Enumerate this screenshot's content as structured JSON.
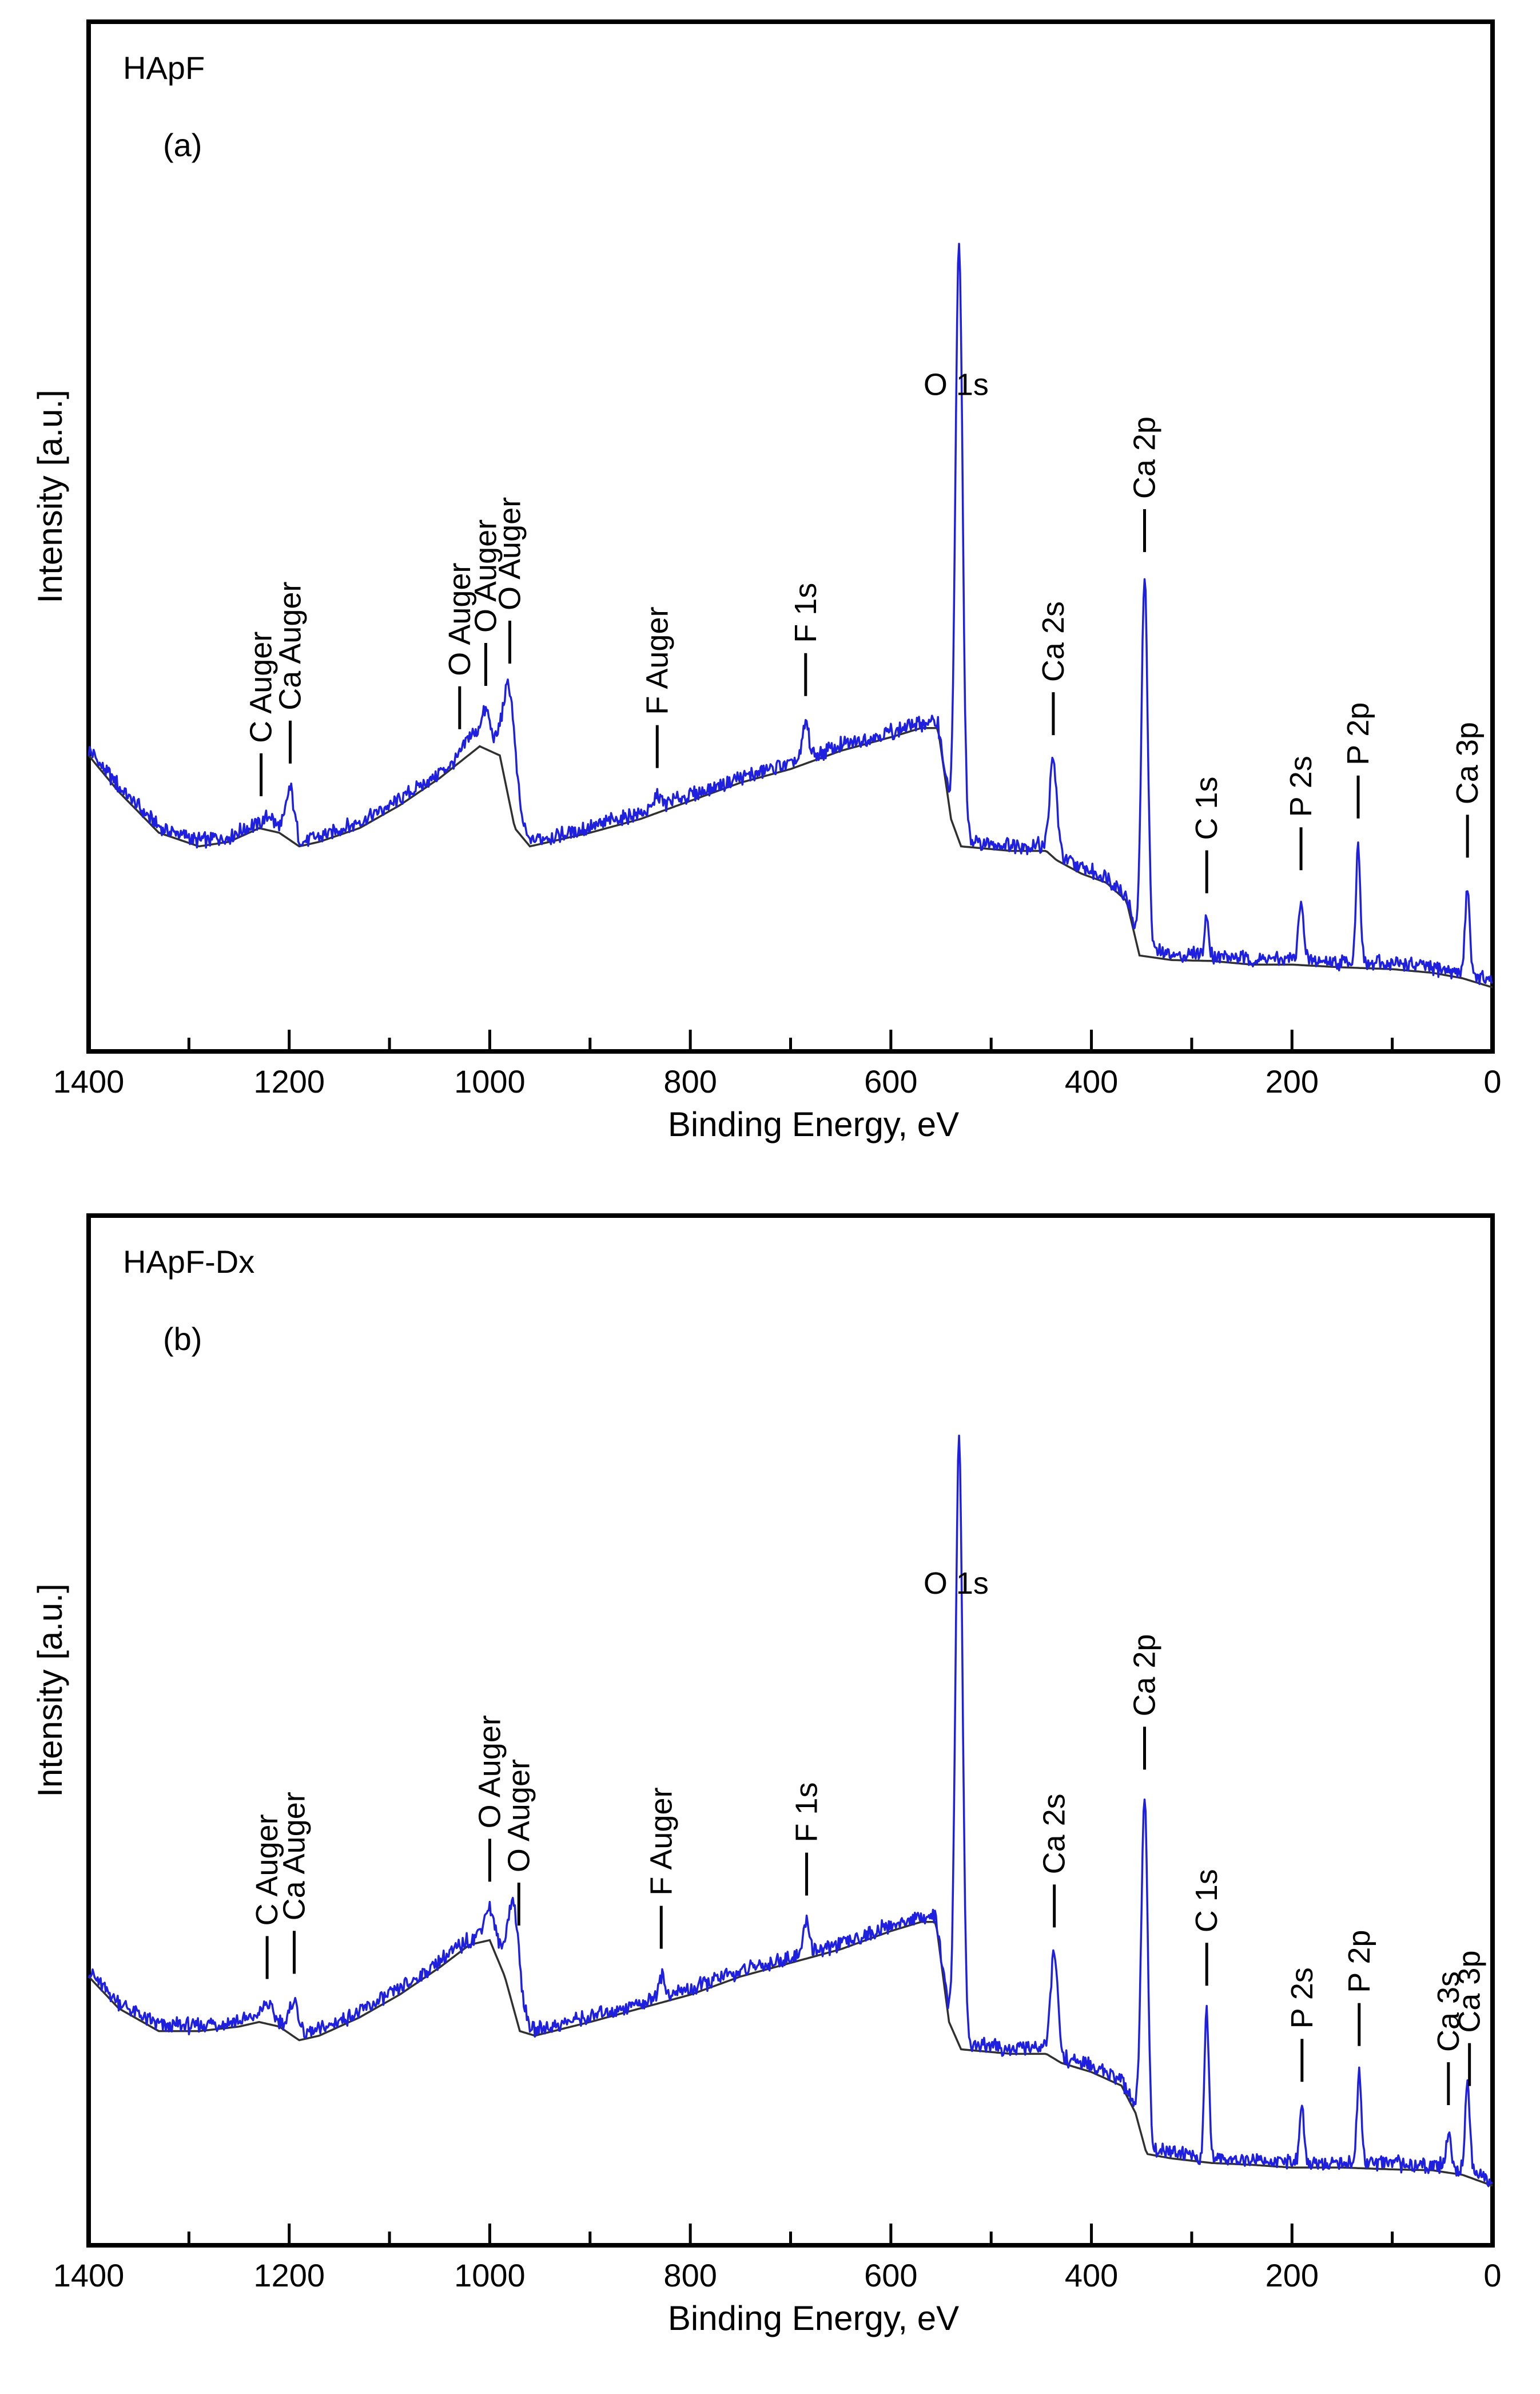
{
  "chart_data": [
    {
      "type": "line",
      "panel_label": "(a)",
      "sample": "HApF",
      "xlabel": "Binding Energy, eV",
      "ylabel": "Intensity [a.u.]",
      "xlim": [
        1400,
        0
      ],
      "x_reversed": true,
      "ylim": [
        0,
        100
      ],
      "grid": false,
      "x_ticks": [
        1400,
        1200,
        1000,
        800,
        600,
        400,
        200,
        0
      ],
      "series": [
        {
          "name": "spectrum",
          "color": "#1f1fe0"
        },
        {
          "name": "background",
          "color": "#303030"
        }
      ],
      "backbone": [
        [
          1400,
          30
        ],
        [
          1370,
          26
        ],
        [
          1330,
          21.5
        ],
        [
          1290,
          20
        ],
        [
          1260,
          20.5
        ],
        [
          1230,
          22
        ],
        [
          1210,
          21.5
        ],
        [
          1190,
          20
        ],
        [
          1170,
          20.5
        ],
        [
          1130,
          22
        ],
        [
          1090,
          24.5
        ],
        [
          1050,
          27.5
        ],
        [
          1010,
          31
        ],
        [
          990,
          30
        ],
        [
          975,
          22
        ],
        [
          960,
          20
        ],
        [
          900,
          21.5
        ],
        [
          850,
          23
        ],
        [
          800,
          25
        ],
        [
          750,
          27
        ],
        [
          700,
          28.5
        ],
        [
          650,
          30.5
        ],
        [
          600,
          32
        ],
        [
          570,
          33
        ],
        [
          553,
          33
        ],
        [
          540,
          23
        ],
        [
          530,
          20
        ],
        [
          480,
          19.5
        ],
        [
          445,
          19.5
        ],
        [
          435,
          18.5
        ],
        [
          410,
          17
        ],
        [
          385,
          16
        ],
        [
          365,
          14
        ],
        [
          352,
          8
        ],
        [
          320,
          7.5
        ],
        [
          280,
          7.4
        ],
        [
          240,
          7
        ],
        [
          200,
          7
        ],
        [
          150,
          6.7
        ],
        [
          100,
          6.5
        ],
        [
          60,
          6.1
        ],
        [
          30,
          5.5
        ],
        [
          0,
          4.5
        ]
      ],
      "peaks": [
        {
          "label": "O 1s",
          "x": 532,
          "height": 65,
          "width": 3.5
        },
        {
          "label": "Ca 2p",
          "x": 347,
          "height": 41,
          "width": 3.2
        },
        {
          "label": "Ca 2s",
          "x": 438,
          "height": 10,
          "width": 3.5
        },
        {
          "label": "O Auger",
          "x": 980,
          "height": 12,
          "width": 6
        },
        {
          "label": "O Auger",
          "x": 1004,
          "height": 3.5,
          "width": 5
        },
        {
          "label": "O Auger",
          "x": 1020,
          "height": 1.5,
          "width": 5
        },
        {
          "label": "F 1s",
          "x": 685,
          "height": 4,
          "width": 3
        },
        {
          "label": "F Auger",
          "x": 833,
          "height": 1.5,
          "width": 3
        },
        {
          "label": "Ca Auger",
          "x": 1199,
          "height": 5,
          "width": 4
        },
        {
          "label": "C Auger",
          "x": 1220,
          "height": 1,
          "width": 4
        },
        {
          "label": "C 1s",
          "x": 285,
          "height": 4,
          "width": 2.2
        },
        {
          "label": "P 2s",
          "x": 191,
          "height": 7,
          "width": 2.2
        },
        {
          "label": "P 2p",
          "x": 134,
          "height": 13,
          "width": 2.2
        },
        {
          "label": "Ca 3p",
          "x": 25,
          "height": 10,
          "width": 2.2
        }
      ],
      "annotations": [
        {
          "text": "O 1s",
          "x": 535,
          "orientation": "horizontal",
          "leader": false
        },
        {
          "text": "Ca 2p",
          "x": 347,
          "orientation": "vertical",
          "leader": true
        },
        {
          "text": "Ca 2s",
          "x": 438,
          "orientation": "vertical",
          "leader": true
        },
        {
          "text": "F 1s",
          "x": 685,
          "orientation": "vertical",
          "leader": true
        },
        {
          "text": "F Auger",
          "x": 833,
          "orientation": "vertical",
          "leader": true
        },
        {
          "text": "O Auger",
          "x": 980,
          "orientation": "vertical",
          "leader": true
        },
        {
          "text": "O Auger",
          "x": 1004,
          "orientation": "vertical",
          "leader": true
        },
        {
          "text": "O Auger",
          "x": 1030,
          "orientation": "vertical",
          "leader": true
        },
        {
          "text": "Ca Auger",
          "x": 1199,
          "orientation": "vertical",
          "leader": true
        },
        {
          "text": "C Auger",
          "x": 1228,
          "orientation": "vertical",
          "leader": true
        },
        {
          "text": "C 1s",
          "x": 285,
          "orientation": "vertical",
          "leader": true
        },
        {
          "text": "P 2s",
          "x": 191,
          "orientation": "vertical",
          "leader": true
        },
        {
          "text": "P 2p",
          "x": 134,
          "orientation": "vertical",
          "leader": true
        },
        {
          "text": "Ca 3p",
          "x": 25,
          "orientation": "vertical",
          "leader": true
        }
      ]
    },
    {
      "type": "line",
      "panel_label": "(b)",
      "sample": "HApF-Dx",
      "xlabel": "Binding Energy, eV",
      "ylabel": "Intensity [a.u.]",
      "xlim": [
        1400,
        0
      ],
      "x_reversed": true,
      "ylim": [
        0,
        100
      ],
      "grid": false,
      "x_ticks": [
        1400,
        1200,
        1000,
        800,
        600,
        400,
        200,
        0
      ],
      "series": [
        {
          "name": "spectrum",
          "color": "#1f1fe0"
        },
        {
          "name": "background",
          "color": "#303030"
        }
      ],
      "backbone": [
        [
          1400,
          27
        ],
        [
          1370,
          23.5
        ],
        [
          1330,
          21
        ],
        [
          1290,
          21
        ],
        [
          1250,
          21.5
        ],
        [
          1230,
          22
        ],
        [
          1210,
          21.5
        ],
        [
          1190,
          20
        ],
        [
          1170,
          20.5
        ],
        [
          1130,
          22.5
        ],
        [
          1090,
          25
        ],
        [
          1050,
          28
        ],
        [
          1020,
          30.5
        ],
        [
          1000,
          31
        ],
        [
          985,
          27
        ],
        [
          970,
          21
        ],
        [
          955,
          20.5
        ],
        [
          900,
          22
        ],
        [
          850,
          23.5
        ],
        [
          800,
          25
        ],
        [
          750,
          27
        ],
        [
          700,
          28.5
        ],
        [
          650,
          30
        ],
        [
          600,
          32
        ],
        [
          570,
          33
        ],
        [
          555,
          33
        ],
        [
          542,
          22
        ],
        [
          530,
          19
        ],
        [
          480,
          18.5
        ],
        [
          445,
          18.5
        ],
        [
          430,
          17.5
        ],
        [
          400,
          16.5
        ],
        [
          370,
          15
        ],
        [
          356,
          12
        ],
        [
          345,
          7.5
        ],
        [
          320,
          7
        ],
        [
          280,
          6.5
        ],
        [
          240,
          6.3
        ],
        [
          200,
          6
        ],
        [
          150,
          6
        ],
        [
          100,
          5.8
        ],
        [
          60,
          5.7
        ],
        [
          30,
          5.2
        ],
        [
          0,
          4
        ]
      ],
      "peaks": [
        {
          "label": "O 1s",
          "x": 532,
          "height": 66,
          "width": 3.5
        },
        {
          "label": "Ca 2p",
          "x": 347,
          "height": 38,
          "width": 3.2
        },
        {
          "label": "Ca 2s",
          "x": 437,
          "height": 11,
          "width": 3.5
        },
        {
          "label": "O Auger",
          "x": 976,
          "height": 11,
          "width": 6
        },
        {
          "label": "O Auger",
          "x": 1000,
          "height": 3,
          "width": 6
        },
        {
          "label": "F 1s",
          "x": 684,
          "height": 3.5,
          "width": 3
        },
        {
          "label": "F Auger",
          "x": 829,
          "height": 2.5,
          "width": 3
        },
        {
          "label": "Ca Auger",
          "x": 1195,
          "height": 3.5,
          "width": 4
        },
        {
          "label": "C Auger",
          "x": 1222,
          "height": 1.5,
          "width": 5
        },
        {
          "label": "C 1s",
          "x": 285,
          "height": 16,
          "width": 2.2
        },
        {
          "label": "P 2s",
          "x": 190,
          "height": 6,
          "width": 2.2
        },
        {
          "label": "P 2p",
          "x": 133,
          "height": 10,
          "width": 2.2
        },
        {
          "label": "Ca 3s",
          "x": 44,
          "height": 4,
          "width": 2.2
        },
        {
          "label": "Ca 3p",
          "x": 25,
          "height": 10,
          "width": 2.2
        }
      ],
      "annotations": [
        {
          "text": "O 1s",
          "x": 535,
          "orientation": "horizontal",
          "leader": false
        },
        {
          "text": "Ca 2p",
          "x": 347,
          "orientation": "vertical",
          "leader": true
        },
        {
          "text": "Ca 2s",
          "x": 437,
          "orientation": "vertical",
          "leader": true
        },
        {
          "text": "F 1s",
          "x": 684,
          "orientation": "vertical",
          "leader": true
        },
        {
          "text": "F Auger",
          "x": 829,
          "orientation": "vertical",
          "leader": true
        },
        {
          "text": "O Auger",
          "x": 971,
          "orientation": "vertical",
          "leader": true
        },
        {
          "text": "O Auger",
          "x": 1000,
          "orientation": "vertical",
          "leader": true
        },
        {
          "text": "Ca Auger",
          "x": 1195,
          "orientation": "vertical",
          "leader": true
        },
        {
          "text": "C Auger",
          "x": 1222,
          "orientation": "vertical",
          "leader": true
        },
        {
          "text": "C 1s",
          "x": 285,
          "orientation": "vertical",
          "leader": true
        },
        {
          "text": "P 2s",
          "x": 190,
          "orientation": "vertical",
          "leader": true
        },
        {
          "text": "P 2p",
          "x": 133,
          "orientation": "vertical",
          "leader": true
        },
        {
          "text": "Ca 3s",
          "x": 44,
          "orientation": "vertical",
          "leader": true
        },
        {
          "text": "Ca 3p",
          "x": 23,
          "orientation": "vertical",
          "leader": true
        }
      ]
    }
  ]
}
